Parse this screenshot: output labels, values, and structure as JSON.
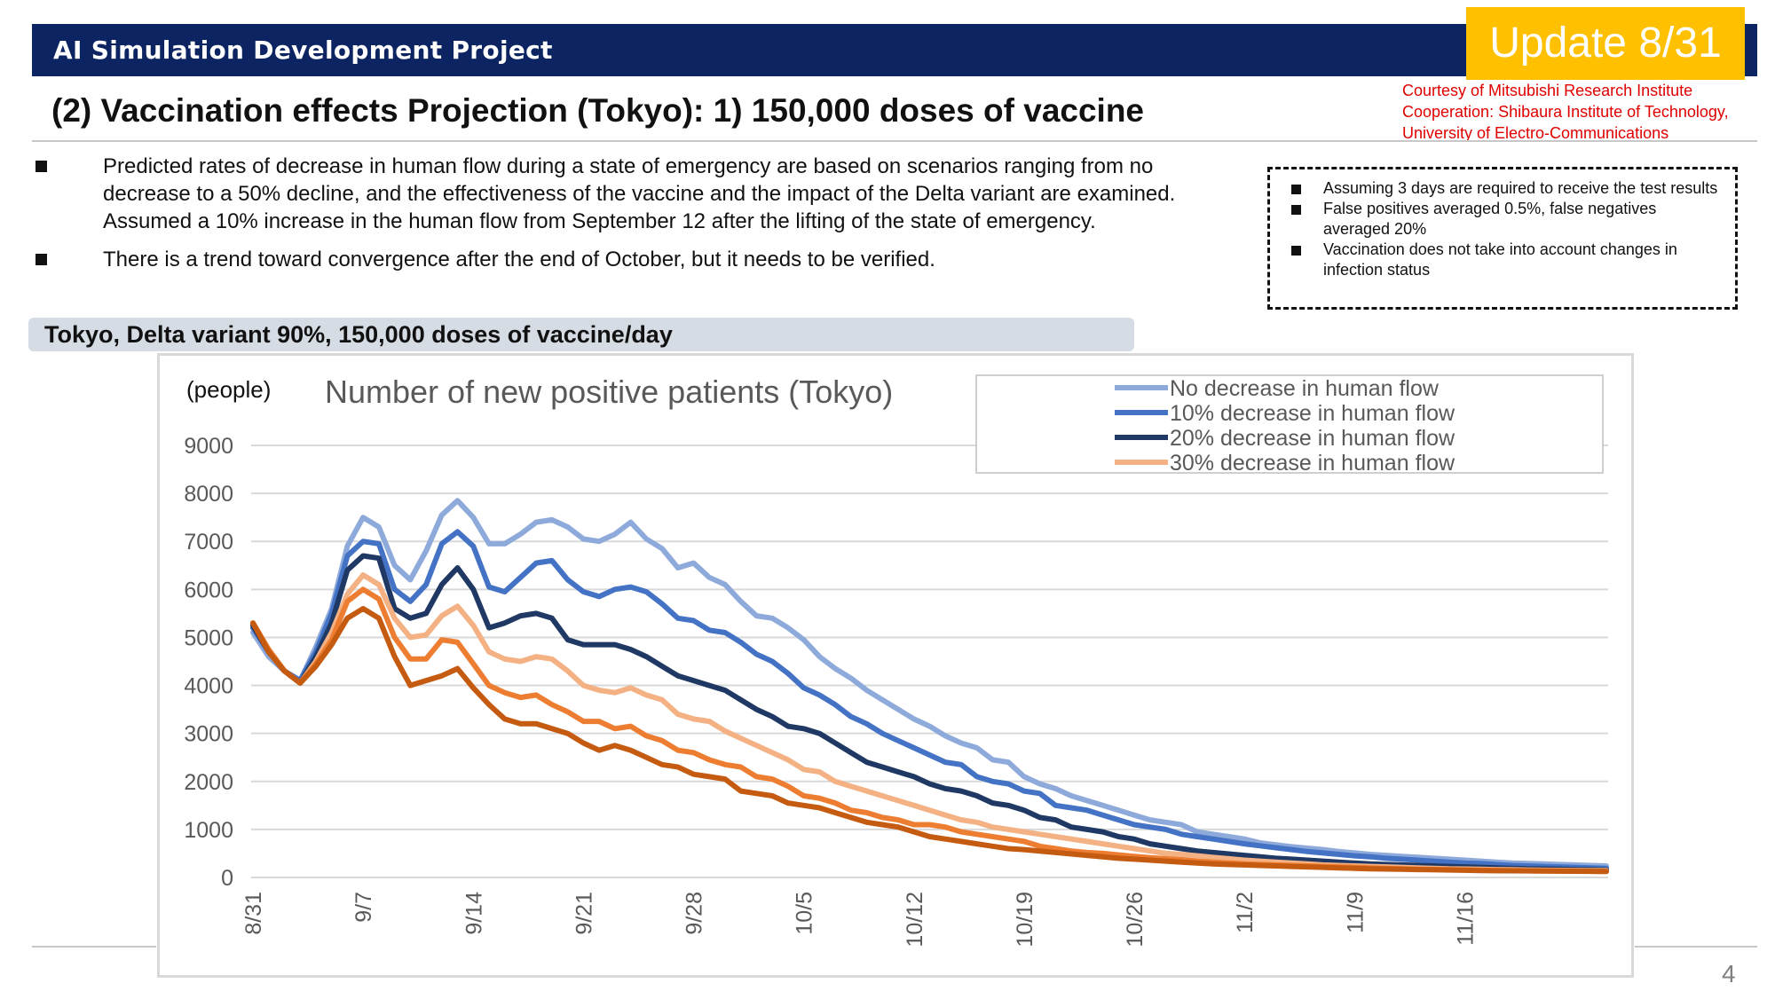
{
  "header": {
    "project": "AI Simulation Development Project",
    "update": "Update 8/31"
  },
  "slide_title": "(2) Vaccination effects Projection (Tokyo): 1) 150,000 doses of vaccine",
  "courtesy": [
    "Courtesy of Mitsubishi Research Institute",
    "Cooperation: Shibaura Institute of Technology,",
    "University of Electro-Communications"
  ],
  "bullets": [
    "Predicted rates of decrease in human flow during a state of emergency are based on scenarios ranging from no decrease to a 50% decline, and the effectiveness of the vaccine and the impact of the Delta variant are examined. Assumed a 10% increase in the human flow from September 12 after the lifting of the state of emergency.",
    "There is a trend toward convergence after the end of October, but it needs to be verified."
  ],
  "assumptions": [
    "Assuming 3 days are required to receive the test results",
    "False positives averaged 0.5%, false negatives averaged 20%",
    "Vaccination does not take into account changes in infection status"
  ],
  "chart_label": "Tokyo, Delta variant 90%, 150,000 doses of vaccine/day",
  "page_number": "4",
  "chart_data": {
    "type": "line",
    "title": "Number of new positive patients (Tokyo)",
    "ylabel": "(people)",
    "xlabel": "",
    "ylim": [
      0,
      9000
    ],
    "yticks": [
      0,
      1000,
      2000,
      3000,
      4000,
      5000,
      6000,
      7000,
      8000,
      9000
    ],
    "x_start": "8/31",
    "x_tick_labels": [
      "8/31",
      "9/7",
      "9/14",
      "9/21",
      "9/28",
      "10/5",
      "10/12",
      "10/19",
      "10/26",
      "11/2",
      "11/9",
      "11/16"
    ],
    "grid": true,
    "legend_position": "top-right",
    "series": [
      {
        "name": "No decrease in human flow",
        "color": "#8eaadb",
        "values": [
          5100,
          4600,
          4300,
          4100,
          4800,
          5600,
          6900,
          7500,
          7300,
          6500,
          6200,
          6800,
          7550,
          7850,
          7500,
          6950,
          6950,
          7150,
          7400,
          7450,
          7300,
          7050,
          7000,
          7150,
          7400,
          7050,
          6850,
          6450,
          6550,
          6250,
          6100,
          5750,
          5450,
          5400,
          5200,
          4950,
          4600,
          4350,
          4150,
          3900,
          3700,
          3500,
          3300,
          3150,
          2950,
          2800,
          2700,
          2450,
          2400,
          2100,
          1950,
          1850,
          1700,
          1600,
          1500,
          1400,
          1300,
          1200,
          1150,
          1100,
          950,
          900,
          850,
          800,
          720,
          680,
          640,
          610,
          580,
          540,
          510,
          480,
          460,
          440,
          420,
          400,
          380,
          360,
          340,
          320,
          300,
          290,
          280,
          270,
          260,
          250,
          240
        ]
      },
      {
        "name": "10% decrease in human flow",
        "color": "#4472c4",
        "values": [
          5200,
          4700,
          4300,
          4100,
          4700,
          5500,
          6700,
          7000,
          6950,
          6000,
          5750,
          6100,
          6950,
          7200,
          6900,
          6050,
          5950,
          6250,
          6550,
          6600,
          6200,
          5950,
          5850,
          6000,
          6050,
          5950,
          5700,
          5400,
          5350,
          5150,
          5100,
          4900,
          4650,
          4500,
          4250,
          3950,
          3800,
          3600,
          3350,
          3200,
          3000,
          2850,
          2700,
          2550,
          2400,
          2350,
          2100,
          2000,
          1950,
          1800,
          1750,
          1500,
          1450,
          1400,
          1300,
          1200,
          1100,
          1050,
          1000,
          900,
          850,
          800,
          750,
          700,
          660,
          620,
          580,
          540,
          510,
          480,
          450,
          430,
          400,
          380,
          360,
          340,
          320,
          300,
          290,
          270,
          250,
          240,
          230,
          220,
          210,
          200,
          190
        ]
      },
      {
        "name": "20% decrease in human flow",
        "color": "#1f3864",
        "values": [
          5250,
          4700,
          4300,
          4050,
          4600,
          5300,
          6400,
          6700,
          6650,
          5600,
          5400,
          5500,
          6100,
          6450,
          6000,
          5200,
          5300,
          5450,
          5500,
          5400,
          4950,
          4850,
          4850,
          4850,
          4750,
          4600,
          4400,
          4200,
          4100,
          4000,
          3900,
          3700,
          3500,
          3350,
          3150,
          3100,
          3000,
          2800,
          2600,
          2400,
          2300,
          2200,
          2100,
          1950,
          1850,
          1800,
          1700,
          1550,
          1500,
          1400,
          1250,
          1200,
          1050,
          1000,
          950,
          850,
          800,
          700,
          650,
          600,
          550,
          520,
          490,
          460,
          430,
          400,
          380,
          360,
          340,
          320,
          300,
          280,
          270,
          260,
          250,
          240,
          230,
          220,
          210,
          200,
          190,
          180,
          175,
          170,
          165,
          160,
          155
        ]
      },
      {
        "name": "30% decrease in human flow",
        "color": "#f4b183",
        "values": [
          5300,
          4750,
          4300,
          4050,
          4500,
          5100,
          5900,
          6300,
          6100,
          5400,
          5000,
          5050,
          5450,
          5650,
          5250,
          4700,
          4550,
          4500,
          4600,
          4550,
          4300,
          4000,
          3900,
          3850,
          3950,
          3800,
          3700,
          3400,
          3300,
          3250,
          3050,
          2900,
          2750,
          2600,
          2450,
          2250,
          2200,
          2000,
          1900,
          1800,
          1700,
          1600,
          1500,
          1400,
          1300,
          1200,
          1150,
          1050,
          1000,
          950,
          900,
          850,
          800,
          750,
          700,
          650,
          600,
          550,
          500,
          480,
          450,
          420,
          390,
          360,
          340,
          320,
          300,
          280,
          260,
          250,
          240,
          230,
          220,
          210,
          200,
          190,
          180,
          175,
          170,
          165,
          160,
          155,
          150,
          148,
          146,
          144,
          142
        ]
      },
      {
        "color": "#ed7d31",
        "values": [
          5300,
          4750,
          4300,
          4050,
          4450,
          4950,
          5750,
          6000,
          5800,
          5000,
          4550,
          4550,
          4950,
          4900,
          4450,
          4000,
          3850,
          3750,
          3800,
          3600,
          3450,
          3250,
          3250,
          3100,
          3150,
          2950,
          2850,
          2650,
          2600,
          2450,
          2350,
          2300,
          2100,
          2050,
          1900,
          1700,
          1650,
          1550,
          1400,
          1350,
          1250,
          1200,
          1100,
          1100,
          1050,
          950,
          900,
          850,
          800,
          750,
          650,
          600,
          550,
          520,
          500,
          470,
          440,
          410,
          390,
          370,
          340,
          320,
          300,
          280,
          270,
          260,
          250,
          240,
          230,
          220,
          210,
          200,
          190,
          180,
          170,
          165,
          160,
          155,
          150,
          145,
          140,
          138,
          136,
          134,
          132,
          130,
          128
        ]
      },
      {
        "color": "#c55a11",
        "values": [
          5300,
          4700,
          4300,
          4050,
          4400,
          4850,
          5400,
          5600,
          5400,
          4600,
          4000,
          4100,
          4200,
          4350,
          3950,
          3600,
          3300,
          3200,
          3200,
          3100,
          3000,
          2800,
          2650,
          2750,
          2650,
          2500,
          2350,
          2300,
          2150,
          2100,
          2050,
          1800,
          1750,
          1700,
          1550,
          1500,
          1450,
          1350,
          1250,
          1150,
          1100,
          1050,
          950,
          850,
          800,
          750,
          700,
          650,
          600,
          580,
          550,
          520,
          490,
          460,
          430,
          400,
          380,
          360,
          340,
          320,
          300,
          280,
          270,
          260,
          250,
          240,
          230,
          220,
          210,
          200,
          190,
          180,
          175,
          170,
          165,
          160,
          155,
          150,
          145,
          140,
          138,
          136,
          134,
          132,
          130,
          128,
          126
        ]
      }
    ]
  }
}
